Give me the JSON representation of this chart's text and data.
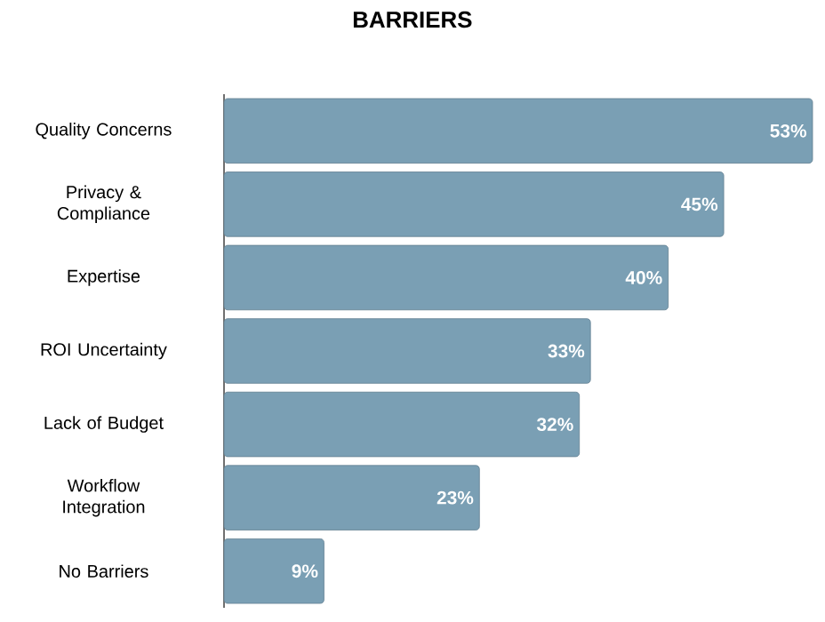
{
  "chart_data": {
    "type": "bar",
    "orientation": "horizontal",
    "title": "BARRIERS",
    "categories": [
      "Quality Concerns",
      "Privacy &\nCompliance",
      "Expertise",
      "ROI Uncertainty",
      "Lack of Budget",
      "Workflow\nIntegration",
      "No Barriers"
    ],
    "values": [
      53,
      45,
      40,
      33,
      32,
      23,
      9
    ],
    "value_labels": [
      "53%",
      "45%",
      "40%",
      "33%",
      "32%",
      "23%",
      "9%"
    ],
    "color": "#7a9fb4"
  }
}
